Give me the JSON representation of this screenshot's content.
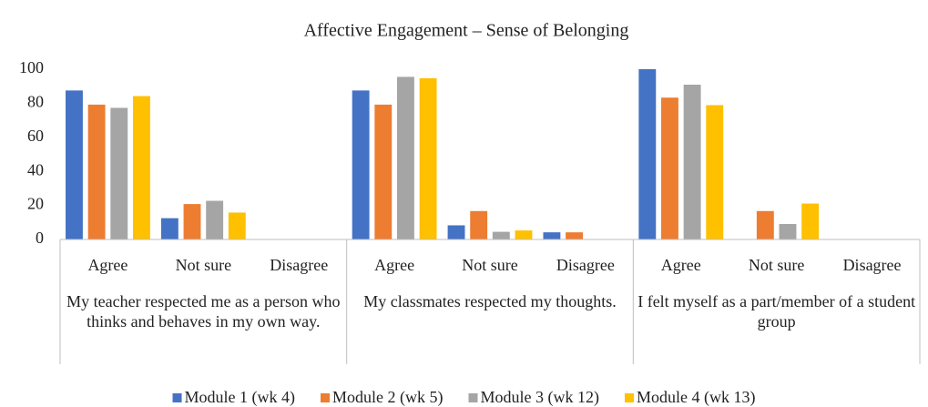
{
  "chart_data": {
    "type": "bar",
    "title": "Affective Engagement – Sense of Belonging",
    "groups": [
      {
        "label": "My teacher respected me as a person who thinks and behaves in my own way.",
        "categories": [
          "Agree",
          "Not sure",
          "Disagree"
        ]
      },
      {
        "label": "My classmates respected my thoughts.",
        "categories": [
          "Agree",
          "Not sure",
          "Disagree"
        ]
      },
      {
        "label": "I felt myself as a part/member of a student group",
        "categories": [
          "Agree",
          "Not sure",
          "Disagree"
        ]
      }
    ],
    "series": [
      {
        "name": "Module 1 (wk 4)",
        "color": "#4472c4",
        "values": [
          87.5,
          12.5,
          0,
          87.5,
          8.3,
          4.2,
          100,
          0,
          0
        ]
      },
      {
        "name": "Module 2 (wk 5)",
        "color": "#ed7d31",
        "values": [
          79.2,
          20.8,
          0,
          79.2,
          16.7,
          4.2,
          83.3,
          16.7,
          0
        ]
      },
      {
        "name": "Module 3 (wk 12)",
        "color": "#a5a5a5",
        "values": [
          77.3,
          22.7,
          0,
          95.5,
          4.5,
          0,
          90.9,
          9.1,
          0
        ]
      },
      {
        "name": "Module 4 (wk 13)",
        "color": "#ffc000",
        "values": [
          84.2,
          15.8,
          0,
          94.7,
          5.3,
          0,
          78.9,
          21.1,
          0
        ]
      }
    ],
    "ylim": [
      0,
      100
    ],
    "yticks": [
      0,
      20,
      40,
      60,
      80,
      100
    ],
    "legend": "bottom"
  }
}
